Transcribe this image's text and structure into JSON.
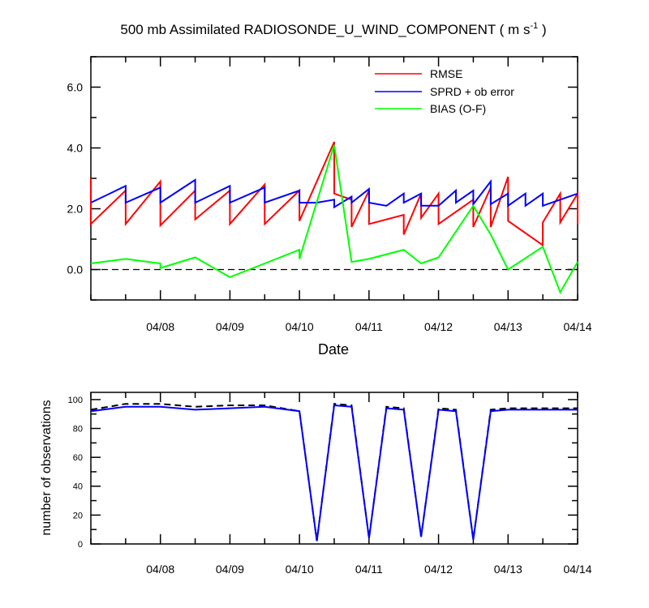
{
  "chart_data": [
    {
      "type": "line",
      "title_main": "500 mb Assimilated RADIOSONDE_U_WIND_COMPONENT ( m s",
      "title_sup": "-1",
      "title_end": " )",
      "xlabel": "Date",
      "ylabel": "",
      "x_ticklabels": [
        "04/08",
        "04/09",
        "04/10",
        "04/11",
        "04/12",
        "04/13",
        "04/14"
      ],
      "xlim": [
        0,
        7
      ],
      "ylim": [
        -1.0,
        7.0
      ],
      "y_ticks": [
        0.0,
        2.0,
        4.0,
        6.0
      ],
      "y_ticklabels": [
        "0.0",
        "2.0",
        "4.0",
        "6.0"
      ],
      "legend_position": "top-right",
      "zero_line": true,
      "series": [
        {
          "name": "RMSE",
          "color": "#ff0000",
          "x": [
            0,
            0,
            0.5,
            0.5,
            1,
            1,
            1.5,
            1.5,
            2,
            2,
            2.5,
            2.5,
            3,
            3,
            3.5,
            3.5,
            3.75,
            3.75,
            4,
            4,
            4.5,
            4.5,
            4.75,
            4.75,
            5,
            5,
            5.5,
            5.5,
            5.75,
            5.75,
            6,
            6,
            6.5,
            6.5,
            6.75,
            6.75,
            7,
            7
          ],
          "y": [
            3.0,
            1.5,
            2.6,
            1.5,
            2.9,
            1.45,
            2.6,
            1.65,
            2.6,
            1.5,
            2.8,
            1.5,
            2.6,
            1.6,
            4.2,
            2.5,
            2.3,
            1.4,
            2.6,
            1.5,
            1.8,
            1.15,
            2.5,
            1.7,
            2.5,
            1.5,
            2.3,
            1.4,
            2.7,
            1.4,
            3.05,
            1.6,
            0.8,
            1.55,
            2.5,
            1.55,
            2.5,
            1.5
          ]
        },
        {
          "name": "SPRD + ob error",
          "color": "#0000ff",
          "x": [
            0,
            0.5,
            0.5,
            1,
            1,
            1.5,
            1.5,
            2,
            2,
            2.5,
            2.5,
            3,
            3,
            3.25,
            3.25,
            3.5,
            3.5,
            3.75,
            3.75,
            4,
            4,
            4.25,
            4.25,
            4.5,
            4.5,
            4.75,
            4.75,
            5,
            5,
            5.25,
            5.25,
            5.5,
            5.5,
            5.75,
            5.75,
            6,
            6,
            6.25,
            6.25,
            6.5,
            6.5,
            7
          ],
          "y": [
            2.2,
            2.75,
            2.2,
            2.7,
            2.2,
            2.95,
            2.2,
            2.75,
            2.2,
            2.7,
            2.2,
            2.6,
            2.2,
            2.2,
            2.2,
            2.3,
            2.05,
            2.4,
            2.2,
            2.65,
            2.2,
            2.1,
            2.1,
            2.5,
            2.2,
            2.5,
            2.1,
            2.1,
            2.1,
            2.6,
            2.2,
            2.6,
            2.15,
            2.9,
            2.15,
            2.5,
            2.1,
            2.5,
            2.1,
            2.5,
            2.1,
            2.5
          ]
        },
        {
          "name": "BIAS (O-F)",
          "color": "#00ff00",
          "x": [
            0,
            0.5,
            1,
            1,
            1.5,
            2,
            2,
            2.5,
            3,
            3,
            3.5,
            3.75,
            4,
            4,
            4.5,
            4.75,
            5,
            5,
            5.5,
            5.75,
            6,
            6,
            6.5,
            6.75,
            7
          ],
          "y": [
            0.2,
            0.35,
            0.2,
            0.05,
            0.4,
            -0.25,
            -0.25,
            0.2,
            0.65,
            0.35,
            4.1,
            0.25,
            0.35,
            0.35,
            0.65,
            0.2,
            0.4,
            0.4,
            2.1,
            1.15,
            0.0,
            0.0,
            0.75,
            -0.75,
            0.25
          ]
        }
      ]
    },
    {
      "type": "line",
      "title": "",
      "xlabel": "",
      "ylabel": "number of observations",
      "x_ticklabels": [
        "04/08",
        "04/09",
        "04/10",
        "04/11",
        "04/12",
        "04/13",
        "04/14"
      ],
      "xlim": [
        0,
        7
      ],
      "ylim": [
        0,
        105
      ],
      "y_ticks": [
        0,
        20,
        40,
        60,
        80,
        100
      ],
      "y_ticklabels": [
        "0",
        "20",
        "40",
        "60",
        "80",
        "100"
      ],
      "series": [
        {
          "color": "#000000",
          "dash": true,
          "x": [
            0,
            0.5,
            1,
            1.5,
            2,
            2.5,
            3,
            3.25,
            3.5,
            3.75,
            4,
            4.25,
            4.5,
            4.75,
            5,
            5.25,
            5.5,
            5.75,
            6,
            6.25,
            6.5,
            6.75,
            7
          ],
          "y": [
            93,
            97,
            97,
            95,
            96,
            96,
            92,
            2,
            97,
            96,
            4,
            95,
            94,
            5,
            94,
            93,
            3,
            93,
            94,
            94,
            94,
            94,
            94
          ]
        },
        {
          "color": "#0000ff",
          "x": [
            0,
            0.5,
            1,
            1.5,
            2,
            2.5,
            3,
            3.25,
            3.5,
            3.75,
            4,
            4.25,
            4.5,
            4.75,
            5,
            5.25,
            5.5,
            5.75,
            6,
            6.25,
            6.5,
            6.75,
            7
          ],
          "y": [
            92,
            95,
            95,
            93,
            94,
            95,
            92,
            2,
            96,
            95,
            4,
            94,
            93,
            5,
            93,
            92,
            3,
            92,
            93,
            93,
            93,
            93,
            93
          ]
        }
      ]
    }
  ]
}
